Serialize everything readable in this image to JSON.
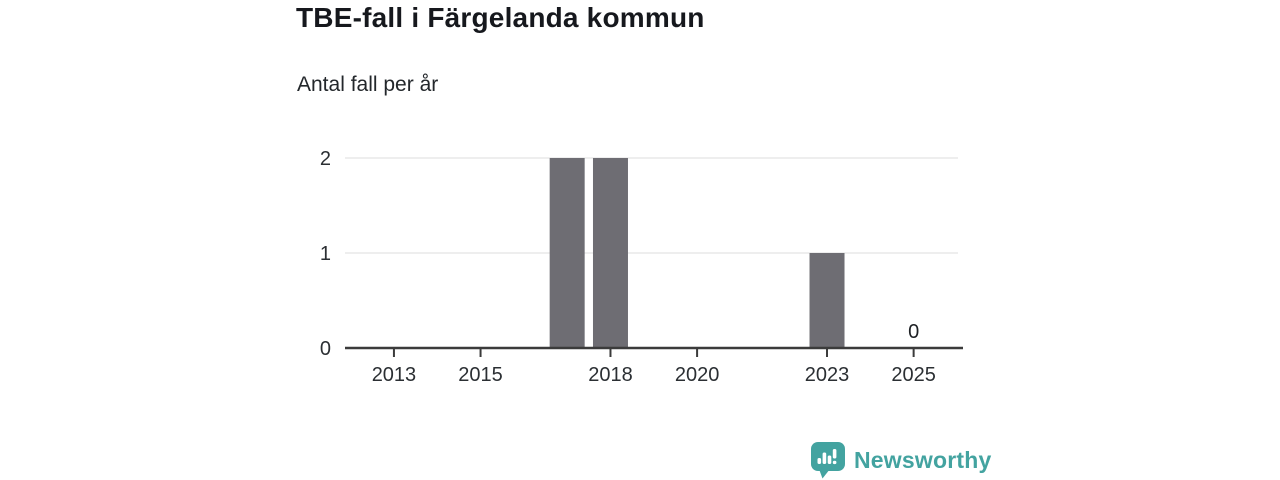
{
  "header": {
    "title": "TBE-fall i Färgelanda kommun",
    "subtitle": "Antal fall per år"
  },
  "chart_data": {
    "type": "bar",
    "title": "TBE-fall i Färgelanda kommun",
    "subtitle": "Antal fall per år",
    "ylabel": "Antal fall per år",
    "x": [
      2012,
      2013,
      2014,
      2015,
      2016,
      2017,
      2018,
      2019,
      2020,
      2021,
      2022,
      2023,
      2024,
      2025
    ],
    "values": [
      0,
      0,
      0,
      0,
      0,
      2,
      2,
      0,
      0,
      0,
      0,
      1,
      0,
      0
    ],
    "ylim": [
      0,
      2
    ],
    "yticks": [
      "0",
      "1",
      "2"
    ],
    "xticks": [
      "2013",
      "2015",
      "2018",
      "2020",
      "2023",
      "2025"
    ],
    "data_labels": [
      {
        "x": 2025,
        "label": "0"
      }
    ],
    "grid": true,
    "legend": "none",
    "bar_color": "#6e6d73",
    "grid_color": "#e9e9e9",
    "axis_color": "#3b3b3b",
    "tick_label_color": "#2b2f33"
  },
  "footer": {
    "brand": "Newsworthy",
    "brand_color": "#43a3a0",
    "logo_icon": "bar-chart-speech-bubble-icon"
  }
}
